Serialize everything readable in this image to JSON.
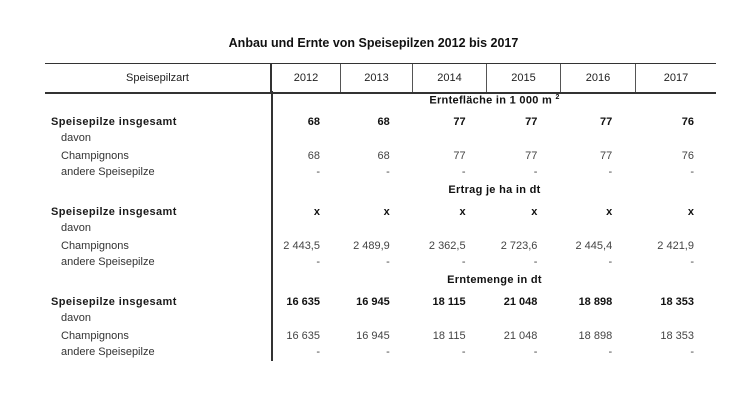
{
  "title": "Anbau und Ernte von Speisepilzen 2012 bis 2017",
  "header": {
    "label": "Speisepilzart",
    "years": [
      "2012",
      "2013",
      "2014",
      "2015",
      "2016",
      "2017"
    ]
  },
  "sections": [
    {
      "heading": "Erntefläche in 1 000 m",
      "heading_sup": "2",
      "rows": [
        {
          "label": "Speisepilze insgesamt",
          "values": [
            "68",
            "68",
            "77",
            "77",
            "77",
            "76"
          ]
        },
        {
          "label": "davon",
          "values": [
            "",
            "",
            "",
            "",
            "",
            ""
          ]
        },
        {
          "label": "Champignons",
          "values": [
            "68",
            "68",
            "77",
            "77",
            "77",
            "76"
          ]
        },
        {
          "label": "andere Speisepilze",
          "values": [
            "-",
            "-",
            "-",
            "-",
            "-",
            "-"
          ]
        }
      ]
    },
    {
      "heading": "Ertrag je ha in dt",
      "heading_sup": "",
      "rows": [
        {
          "label": "Speisepilze insgesamt",
          "values": [
            "x",
            "x",
            "x",
            "x",
            "x",
            "x"
          ]
        },
        {
          "label": "davon",
          "values": [
            "",
            "",
            "",
            "",
            "",
            ""
          ]
        },
        {
          "label": "Champignons",
          "values": [
            "2 443,5",
            "2 489,9",
            "2 362,5",
            "2 723,6",
            "2 445,4",
            "2 421,9"
          ]
        },
        {
          "label": "andere Speisepilze",
          "values": [
            "-",
            "-",
            "-",
            "-",
            "-",
            "-"
          ]
        }
      ]
    },
    {
      "heading": "Erntemenge in dt",
      "heading_sup": "",
      "rows": [
        {
          "label": "Speisepilze insgesamt",
          "values": [
            "16 635",
            "16 945",
            "18 115",
            "21 048",
            "18 898",
            "18 353"
          ]
        },
        {
          "label": "davon",
          "values": [
            "",
            "",
            "",
            "",
            "",
            ""
          ]
        },
        {
          "label": "Champignons",
          "values": [
            "16 635",
            "16 945",
            "18 115",
            "21 048",
            "18 898",
            "18 353"
          ]
        },
        {
          "label": "andere Speisepilze",
          "values": [
            "-",
            "-",
            "-",
            "-",
            "-",
            "-"
          ]
        }
      ]
    }
  ]
}
